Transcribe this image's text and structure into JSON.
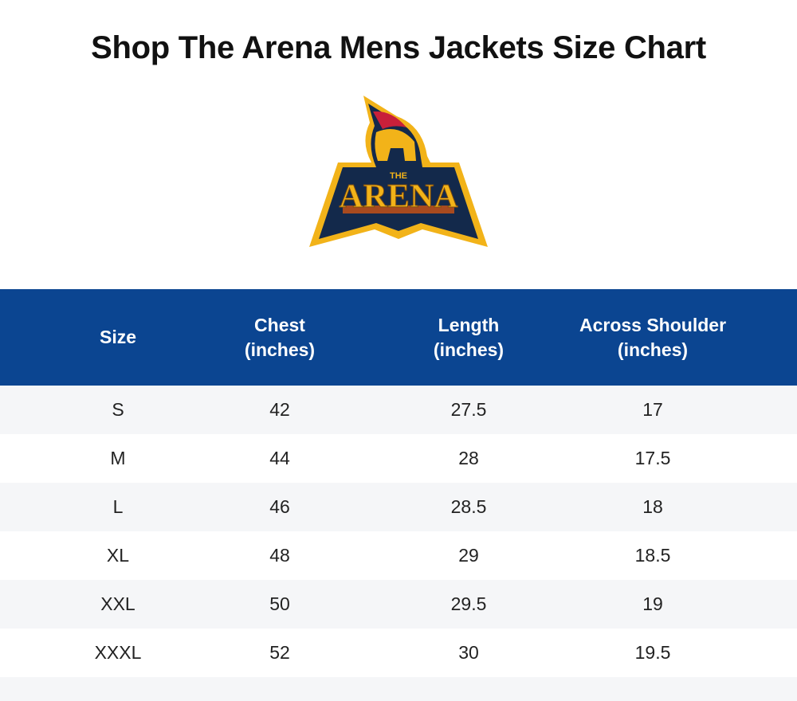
{
  "header": {
    "title": "Shop The Arena Mens Jackets Size Chart"
  },
  "logo": {
    "small": "THE",
    "word": "ARENA"
  },
  "table": {
    "columns": [
      "Size",
      "Chest (inches)",
      "Length (inches)",
      "Across Shoulder (inches)"
    ],
    "rows": [
      [
        "S",
        42,
        27.5,
        17
      ],
      [
        "M",
        44,
        28,
        17.5
      ],
      [
        "L",
        46,
        28.5,
        18
      ],
      [
        "XL",
        48,
        29,
        18.5
      ],
      [
        "XXL",
        50,
        29.5,
        19
      ],
      [
        "XXXL",
        52,
        30,
        19.5
      ]
    ]
  }
}
